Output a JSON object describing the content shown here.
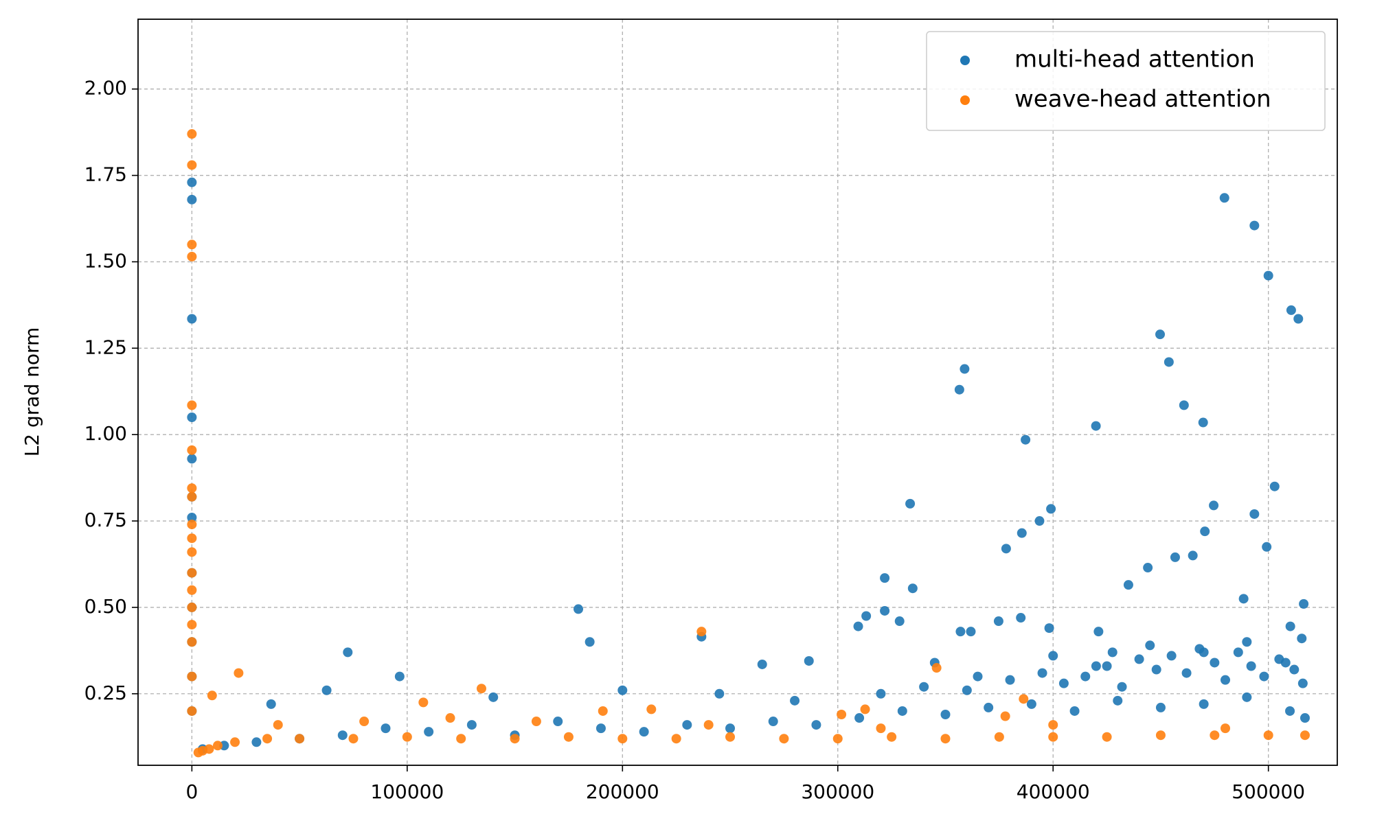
{
  "chart_data": {
    "type": "scatter",
    "ylabel": "L2 grad norm",
    "xlim": [
      -25000,
      532000
    ],
    "ylim": [
      0.043,
      2.202
    ],
    "xticks": [
      0,
      100000,
      200000,
      300000,
      400000,
      500000
    ],
    "yticks": [
      0.25,
      {
        "value": 0.5,
        "label": "0.50"
      },
      0.75,
      {
        "value": 1.0,
        "label": "1.00"
      },
      1.25,
      {
        "value": 1.5,
        "label": "1.50"
      },
      1.75,
      {
        "value": 2.0,
        "label": "2.00"
      }
    ],
    "grid": true,
    "legend": "upper right",
    "series": [
      {
        "name": "multi-head attention",
        "color": "#1f77b4",
        "x": [
          0,
          0,
          0,
          0,
          0,
          0,
          0,
          0,
          0,
          0,
          0,
          0,
          179500,
          184800,
          72400,
          96500,
          62600,
          36800,
          236700,
          264900,
          286600,
          333600,
          334800,
          321800,
          321800,
          309500,
          313200,
          328700,
          356500,
          358900,
          387200,
          378200,
          385500,
          393700,
          399000,
          419900,
          449700,
          453800,
          460800,
          469700,
          479600,
          493500,
          500000,
          502900,
          510600,
          513900,
          493500,
          474600,
          470500,
          435000,
          444000,
          456700,
          464900,
          488500,
          499200,
          516400,
          510200,
          515500,
          357000,
          361800,
          374700,
          385000,
          398200,
          427600,
          421100,
          5000,
          15000,
          30000,
          50000,
          70000,
          90000,
          110000,
          130000,
          150000,
          170000,
          190000,
          210000,
          230000,
          250000,
          270000,
          290000,
          310000,
          330000,
          350000,
          370000,
          390000,
          410000,
          430000,
          450000,
          470000,
          490000,
          510000,
          517000,
          320000,
          340000,
          360000,
          380000,
          395000,
          405000,
          415000,
          425000,
          432000,
          440000,
          448000,
          455000,
          462000,
          468000,
          475000,
          480000,
          486000,
          492000,
          498000,
          505000,
          512000,
          516000,
          345000,
          365000,
          400000,
          420000,
          445000,
          470000,
          490000,
          508000,
          140000,
          200000,
          245000,
          280000
        ],
        "values": [
          1.73,
          1.68,
          1.335,
          1.05,
          0.93,
          0.82,
          0.76,
          0.6,
          0.5,
          0.4,
          0.3,
          0.2,
          0.495,
          0.4,
          0.37,
          0.3,
          0.26,
          0.22,
          0.415,
          0.335,
          0.345,
          0.8,
          0.555,
          0.585,
          0.49,
          0.445,
          0.475,
          0.46,
          1.13,
          1.19,
          0.985,
          0.67,
          0.715,
          0.75,
          0.785,
          1.025,
          1.29,
          1.21,
          1.085,
          1.035,
          1.685,
          1.605,
          1.46,
          0.85,
          1.36,
          1.335,
          0.77,
          0.795,
          0.72,
          0.565,
          0.615,
          0.645,
          0.65,
          0.525,
          0.675,
          0.51,
          0.445,
          0.41,
          0.43,
          0.43,
          0.46,
          0.47,
          0.44,
          0.37,
          0.43,
          0.09,
          0.1,
          0.11,
          0.12,
          0.13,
          0.15,
          0.14,
          0.16,
          0.13,
          0.17,
          0.15,
          0.14,
          0.16,
          0.15,
          0.17,
          0.16,
          0.18,
          0.2,
          0.19,
          0.21,
          0.22,
          0.2,
          0.23,
          0.21,
          0.22,
          0.24,
          0.2,
          0.18,
          0.25,
          0.27,
          0.26,
          0.29,
          0.31,
          0.28,
          0.3,
          0.33,
          0.27,
          0.35,
          0.32,
          0.36,
          0.31,
          0.38,
          0.34,
          0.29,
          0.37,
          0.33,
          0.3,
          0.35,
          0.32,
          0.28,
          0.34,
          0.3,
          0.36,
          0.33,
          0.39,
          0.37,
          0.4,
          0.34,
          0.24,
          0.26,
          0.25,
          0.23
        ]
      },
      {
        "name": "weave-head attention",
        "color": "#ff7f0e",
        "x": [
          0,
          0,
          0,
          0,
          0,
          0,
          0,
          0,
          0,
          0,
          0,
          0,
          0,
          0,
          0,
          0,
          0,
          0,
          21700,
          9400,
          134500,
          236700,
          345900,
          386300,
          301700,
          312700,
          377800,
          107500,
          213400,
          190900,
          3000,
          5000,
          8000,
          12000,
          20000,
          35000,
          50000,
          75000,
          100000,
          125000,
          150000,
          175000,
          200000,
          225000,
          250000,
          275000,
          300000,
          325000,
          350000,
          375000,
          400000,
          425000,
          450000,
          475000,
          500000,
          517000,
          40000,
          80000,
          120000,
          160000,
          240000,
          320000,
          400000,
          480000
        ],
        "values": [
          1.87,
          1.78,
          1.55,
          1.515,
          1.085,
          0.955,
          0.845,
          0.82,
          0.74,
          0.7,
          0.66,
          0.6,
          0.55,
          0.5,
          0.45,
          0.4,
          0.3,
          0.2,
          0.31,
          0.245,
          0.265,
          0.43,
          0.325,
          0.235,
          0.19,
          0.205,
          0.185,
          0.225,
          0.205,
          0.2,
          0.08,
          0.085,
          0.09,
          0.1,
          0.11,
          0.12,
          0.12,
          0.12,
          0.125,
          0.12,
          0.12,
          0.125,
          0.12,
          0.12,
          0.125,
          0.12,
          0.12,
          0.125,
          0.12,
          0.125,
          0.125,
          0.125,
          0.13,
          0.13,
          0.13,
          0.13,
          0.16,
          0.17,
          0.18,
          0.17,
          0.16,
          0.15,
          0.16,
          0.15
        ]
      }
    ]
  }
}
